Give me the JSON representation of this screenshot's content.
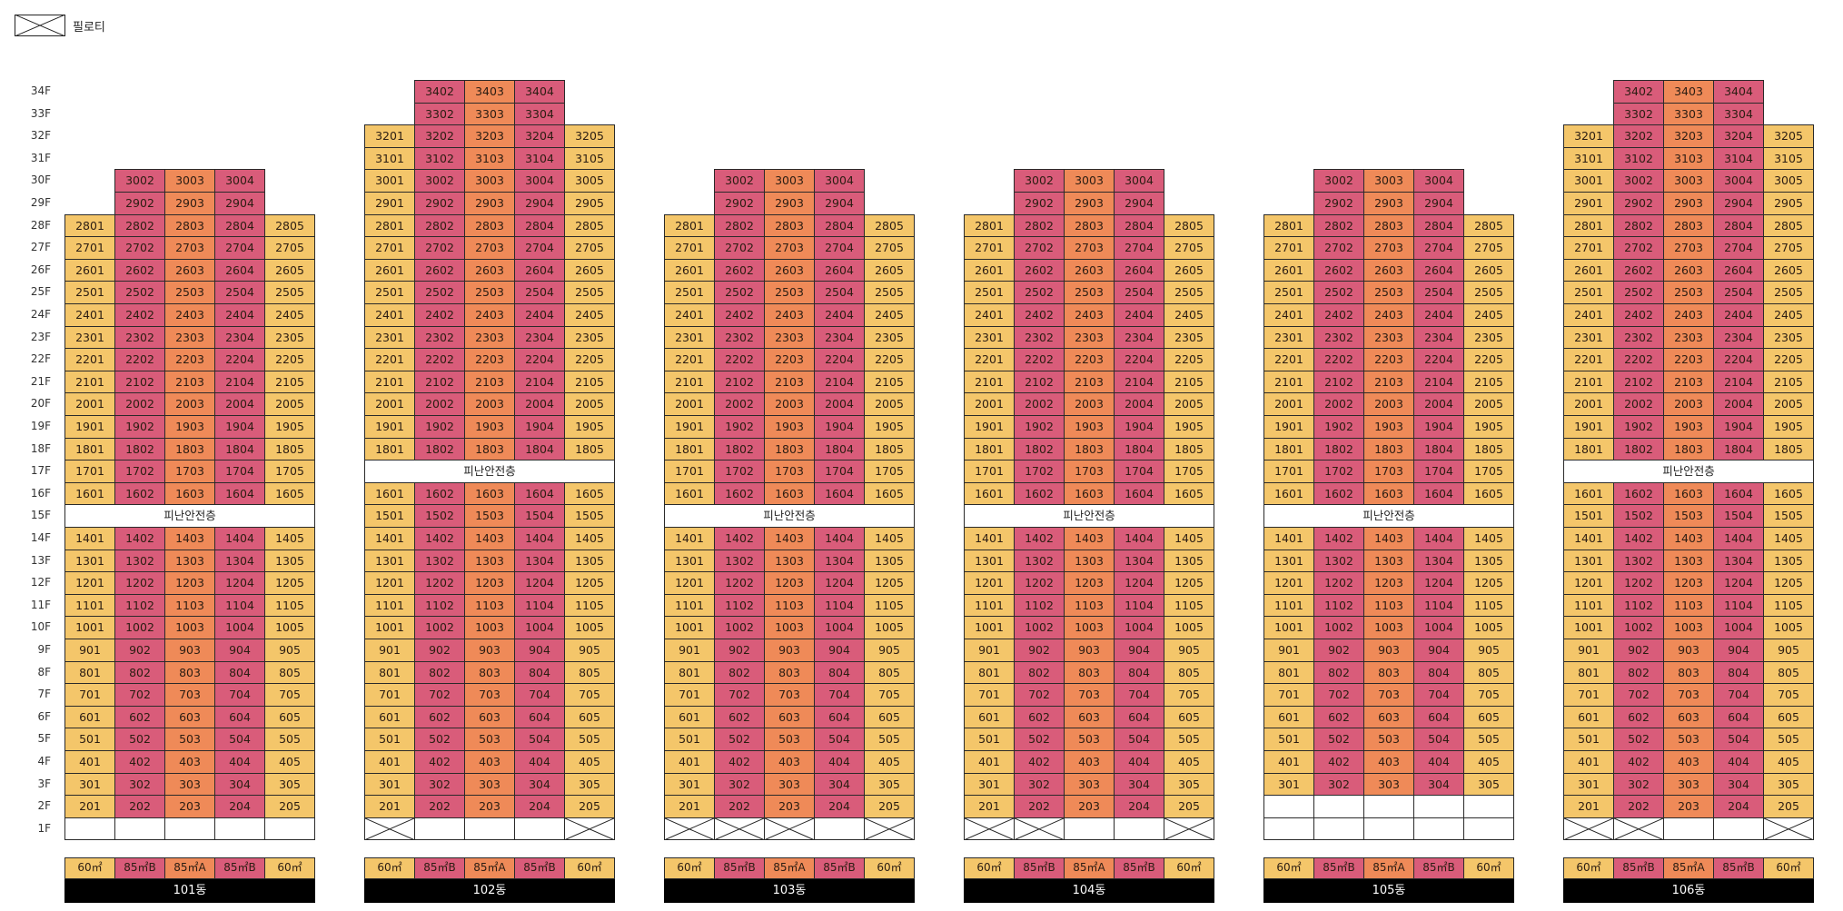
{
  "legend": {
    "label": "필로티"
  },
  "floor_labels": [
    "34F",
    "33F",
    "32F",
    "31F",
    "30F",
    "29F",
    "28F",
    "27F",
    "26F",
    "25F",
    "24F",
    "23F",
    "22F",
    "21F",
    "20F",
    "19F",
    "18F",
    "17F",
    "16F",
    "15F",
    "14F",
    "13F",
    "12F",
    "11F",
    "10F",
    "9F",
    "8F",
    "7F",
    "6F",
    "5F",
    "4F",
    "3F",
    "2F",
    "1F"
  ],
  "evac_label": "피난안전층",
  "unit_colors": [
    "#f4c66a",
    "#d95c7a",
    "#ef8a58",
    "#d95c7a",
    "#f4c66a"
  ],
  "buildings": [
    {
      "name": "101동",
      "evac_floor": 15,
      "pilotis": [],
      "empty_1f": [
        1,
        2,
        3,
        4,
        5
      ],
      "types": [
        "60㎡",
        "85㎡B",
        "85㎡A",
        "85㎡B",
        "60㎡"
      ],
      "floors": [
        {
          "range": [
            29,
            30
          ],
          "cols": [
            2,
            3,
            4
          ]
        },
        {
          "range": [
            2,
            28
          ],
          "cols": [
            1,
            2,
            3,
            4,
            5
          ]
        }
      ]
    },
    {
      "name": "102동",
      "evac_floor": 17,
      "pilotis": [
        1,
        5
      ],
      "empty_1f": [
        2,
        3,
        4
      ],
      "types": [
        "60㎡",
        "85㎡B",
        "85㎡A",
        "85㎡B",
        "60㎡"
      ],
      "floors": [
        {
          "range": [
            33,
            34
          ],
          "cols": [
            2,
            3,
            4
          ]
        },
        {
          "range": [
            2,
            32
          ],
          "cols": [
            1,
            2,
            3,
            4,
            5
          ]
        }
      ]
    },
    {
      "name": "103동",
      "evac_floor": 15,
      "pilotis": [
        1,
        2,
        3,
        5
      ],
      "empty_1f": [
        4
      ],
      "types": [
        "60㎡",
        "85㎡B",
        "85㎡A",
        "85㎡B",
        "60㎡"
      ],
      "floors": [
        {
          "range": [
            29,
            30
          ],
          "cols": [
            2,
            3,
            4
          ]
        },
        {
          "range": [
            2,
            28
          ],
          "cols": [
            1,
            2,
            3,
            4,
            5
          ]
        }
      ]
    },
    {
      "name": "104동",
      "evac_floor": 15,
      "pilotis": [
        1,
        2,
        5
      ],
      "empty_1f": [
        3,
        4
      ],
      "types": [
        "60㎡",
        "85㎡B",
        "85㎡A",
        "85㎡B",
        "60㎡"
      ],
      "floors": [
        {
          "range": [
            29,
            30
          ],
          "cols": [
            2,
            3,
            4
          ]
        },
        {
          "range": [
            2,
            28
          ],
          "cols": [
            1,
            2,
            3,
            4,
            5
          ]
        }
      ]
    },
    {
      "name": "105동",
      "evac_floor": 15,
      "pilotis": [],
      "empty_1f": [
        1,
        2,
        3,
        4,
        5
      ],
      "empty_2f": true,
      "types": [
        "60㎡",
        "85㎡B",
        "85㎡A",
        "85㎡B",
        "60㎡"
      ],
      "floors": [
        {
          "range": [
            29,
            30
          ],
          "cols": [
            2,
            3,
            4
          ]
        },
        {
          "range": [
            3,
            28
          ],
          "cols": [
            1,
            2,
            3,
            4,
            5
          ]
        }
      ]
    },
    {
      "name": "106동",
      "evac_floor": 17,
      "pilotis": [
        1,
        2,
        5
      ],
      "empty_1f": [
        3,
        4
      ],
      "types": [
        "60㎡",
        "85㎡B",
        "85㎡A",
        "85㎡B",
        "60㎡"
      ],
      "floors": [
        {
          "range": [
            33,
            34
          ],
          "cols": [
            2,
            3,
            4
          ]
        },
        {
          "range": [
            2,
            32
          ],
          "cols": [
            1,
            2,
            3,
            4,
            5
          ]
        }
      ]
    }
  ]
}
